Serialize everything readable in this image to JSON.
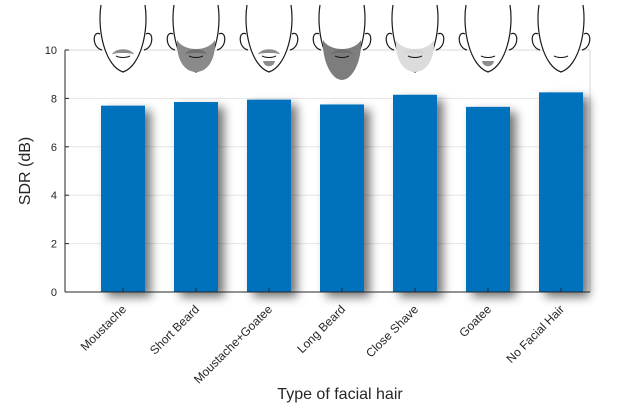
{
  "chart_data": {
    "type": "bar",
    "title": "",
    "xlabel": "Type of facial hair",
    "ylabel": "SDR (dB)",
    "ylim": [
      0,
      10
    ],
    "yticks": [
      0,
      2,
      4,
      6,
      8,
      10
    ],
    "grid": true,
    "categories": [
      "Moustache",
      "Short Beard",
      "Moustache+Goatee",
      "Long Beard",
      "Close Shave",
      "Goatee",
      "No Facial Hair"
    ],
    "values": [
      7.7,
      7.85,
      7.95,
      7.75,
      8.15,
      7.65,
      8.25
    ],
    "bar_color": "#0072BD",
    "face_icons": [
      "moustache-face-icon",
      "short-beard-face-icon",
      "moustache-goatee-face-icon",
      "long-beard-face-icon",
      "close-shave-face-icon",
      "goatee-face-icon",
      "no-facial-hair-face-icon"
    ]
  }
}
